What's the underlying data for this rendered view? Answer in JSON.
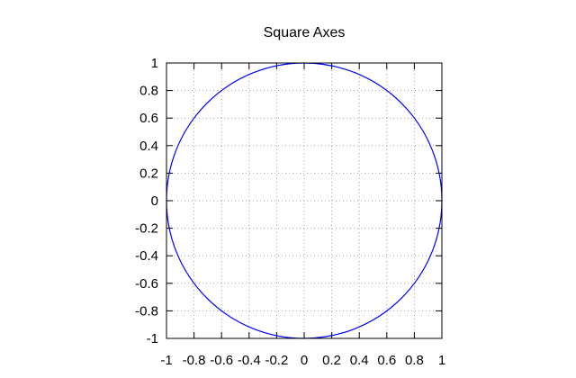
{
  "chart_data": {
    "type": "line",
    "title": "Square Axes",
    "xlabel": "",
    "ylabel": "",
    "xlim": [
      -1,
      1
    ],
    "ylim": [
      -1,
      1
    ],
    "grid": true,
    "legend": "none",
    "x_ticks": [
      -1,
      -0.8,
      -0.6,
      -0.4,
      -0.2,
      0,
      0.2,
      0.4,
      0.6,
      0.8,
      1
    ],
    "x_tick_labels": [
      "-1",
      "-0.8",
      "-0.6",
      "-0.4",
      "-0.2",
      "0",
      "0.2",
      "0.4",
      "0.6",
      "0.8",
      "1"
    ],
    "y_ticks": [
      -1,
      -0.8,
      -0.6,
      -0.4,
      -0.2,
      0,
      0.2,
      0.4,
      0.6,
      0.8,
      1
    ],
    "y_tick_labels": [
      "-1",
      "-0.8",
      "-0.6",
      "-0.4",
      "-0.2",
      "0",
      "0.2",
      "0.4",
      "0.6",
      "0.8",
      "1"
    ],
    "series": [
      {
        "shape": "circle",
        "center": [
          0,
          0
        ],
        "radius": 1,
        "color": "#0000ff"
      }
    ]
  }
}
